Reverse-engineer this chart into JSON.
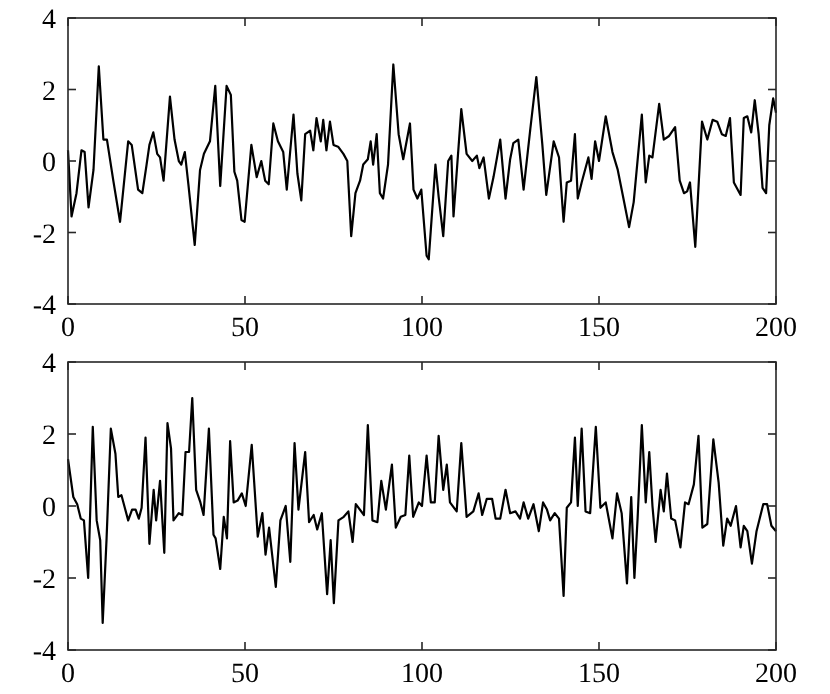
{
  "chart_data": [
    {
      "type": "line",
      "xlim": [
        0,
        200
      ],
      "xticks": [
        0,
        50,
        100,
        150,
        200
      ],
      "ylim": [
        -4,
        4
      ],
      "yticks": [
        -4,
        -2,
        0,
        2,
        4
      ],
      "grid": false,
      "series": [
        {
          "color": "#000000",
          "x": [
            0,
            1,
            2.4,
            3.8,
            4.7,
            5.8,
            7.2,
            8.7,
            10,
            11,
            12.8,
            14.7,
            17,
            18,
            19.8,
            21,
            22.2,
            23,
            24.1,
            25.2,
            26,
            27,
            28.8,
            30.1,
            31.3,
            32,
            33,
            34,
            35.8,
            37.3,
            38.4,
            40.1,
            41.6,
            43,
            44.8,
            46,
            47,
            47.8,
            49,
            49.9,
            51.8,
            53.3,
            54.6,
            55.7,
            56.7,
            58,
            59.3,
            60.8,
            61.8,
            63.7,
            64.8,
            65.9,
            67,
            68.4,
            69.3,
            70.2,
            71.4,
            72.1,
            73,
            74,
            75,
            76.3,
            77.8,
            78.9,
            80,
            81.2,
            82.5,
            83.4,
            84.7,
            85.5,
            86.2,
            87.2,
            88.1,
            89,
            90.4,
            91.9,
            93.4,
            94.7,
            96.6,
            97.6,
            98.7,
            99.8,
            101.3,
            101.9,
            103.8,
            104.7,
            106,
            107.4,
            108.3,
            108.9,
            111.1,
            112.6,
            114.2,
            115.5,
            116.2,
            117.4,
            118.9,
            120.2,
            122.1,
            123.6,
            124.9,
            125.8,
            127.2,
            128.7,
            130.6,
            132.3,
            134,
            135.1,
            137.2,
            138.7,
            140,
            140.9,
            142.1,
            143.2,
            144,
            145.1,
            147,
            147.9,
            148.9,
            150,
            151.9,
            153.8,
            155.3,
            157,
            158.5,
            159.8,
            162.1,
            163.2,
            164.2,
            165.1,
            167,
            168.3,
            169.8,
            171.5,
            172.8,
            174,
            174.9,
            175.7,
            177.2,
            179.1,
            180.6,
            182.1,
            183.4,
            184.7,
            185.8,
            187,
            188.1,
            190,
            190.9,
            191.9,
            193,
            194,
            195.1,
            196.2,
            197.2,
            198.1,
            199.2,
            200
          ],
          "values": [
            0.3,
            -1.55,
            -0.9,
            0.3,
            0.25,
            -1.3,
            -0.25,
            2.65,
            0.6,
            0.6,
            -0.55,
            -1.7,
            0.55,
            0.45,
            -0.8,
            -0.9,
            -0.1,
            0.45,
            0.8,
            0.2,
            0.1,
            -0.55,
            1.8,
            0.6,
            0.0,
            -0.1,
            0.25,
            -0.65,
            -2.35,
            -0.25,
            0.2,
            0.55,
            2.1,
            -0.7,
            2.1,
            1.85,
            -0.3,
            -0.55,
            -1.65,
            -1.7,
            0.45,
            -0.45,
            0.0,
            -0.55,
            -0.65,
            1.05,
            0.55,
            0.25,
            -0.8,
            1.3,
            -0.35,
            -1.1,
            0.75,
            0.85,
            0.3,
            1.2,
            0.55,
            1.15,
            0.3,
            1.1,
            0.45,
            0.4,
            0.2,
            0.0,
            -2.1,
            -0.9,
            -0.55,
            -0.1,
            0.05,
            0.55,
            -0.1,
            0.75,
            -0.9,
            -1.05,
            -0.1,
            2.7,
            0.75,
            0.05,
            1.05,
            -0.8,
            -1.05,
            -0.8,
            -2.65,
            -2.75,
            -0.1,
            -1.0,
            -2.1,
            0.0,
            0.15,
            -1.55,
            1.45,
            0.2,
            0.0,
            0.15,
            -0.2,
            0.1,
            -1.05,
            -0.45,
            0.6,
            -1.05,
            0.05,
            0.5,
            0.6,
            -0.8,
            0.9,
            2.35,
            0.45,
            -0.95,
            0.55,
            0.1,
            -1.7,
            -0.6,
            -0.55,
            0.75,
            -1.05,
            -0.6,
            0.1,
            -0.5,
            0.55,
            0.0,
            1.25,
            0.25,
            -0.25,
            -1.1,
            -1.85,
            -1.15,
            1.3,
            -0.6,
            0.15,
            0.1,
            1.6,
            0.6,
            0.7,
            0.95,
            -0.55,
            -0.9,
            -0.85,
            -0.6,
            -2.4,
            1.1,
            0.6,
            1.15,
            1.1,
            0.75,
            0.7,
            1.2,
            -0.6,
            -0.95,
            1.2,
            1.25,
            0.8,
            1.7,
            0.75,
            -0.75,
            -0.9,
            1.0,
            1.75,
            1.35
          ]
        }
      ]
    },
    {
      "type": "line",
      "xlim": [
        0,
        200
      ],
      "xticks": [
        0,
        50,
        100,
        150,
        200
      ],
      "ylim": [
        -4,
        4
      ],
      "yticks": [
        -4,
        -2,
        0,
        2,
        4
      ],
      "grid": false,
      "series": [
        {
          "color": "#000000",
          "x": [
            0,
            1.5,
            2.6,
            3.6,
            4.5,
            5.7,
            7,
            8.1,
            9.1,
            9.8,
            10.9,
            12.1,
            13.4,
            14.2,
            15.1,
            17,
            18.1,
            19.1,
            20,
            20.8,
            21.9,
            23,
            24.2,
            24.9,
            26,
            27.2,
            28.1,
            29.1,
            29.8,
            31.3,
            32.3,
            33.2,
            34.2,
            35.1,
            36.2,
            37.4,
            38.3,
            39.8,
            41.1,
            41.7,
            43,
            44,
            44.9,
            45.8,
            46.8,
            47.9,
            49.1,
            50.2,
            51.9,
            53.6,
            54.9,
            55.8,
            56.8,
            58.7,
            60,
            61.5,
            62.8,
            64,
            65.1,
            67,
            68.1,
            69.4,
            70.4,
            71.7,
            73.2,
            74.2,
            75.1,
            76.4,
            77.9,
            79.2,
            80.4,
            81.3,
            83.6,
            84.7,
            86,
            87.4,
            88.5,
            89.8,
            91.5,
            92.6,
            94,
            95.3,
            96.4,
            97.5,
            99.1,
            100,
            101.3,
            102.5,
            103.6,
            104.7,
            106,
            107,
            107.9,
            109.8,
            111.1,
            112.6,
            114.5,
            116,
            117,
            118.3,
            119.8,
            120.8,
            122.1,
            123.6,
            124.9,
            126.4,
            127.7,
            128.7,
            130,
            131.5,
            133,
            134.2,
            135.3,
            136.2,
            137.5,
            138.7,
            140,
            140.9,
            142.1,
            143.2,
            144,
            145.1,
            146.2,
            147.5,
            149.1,
            150.4,
            151.9,
            153.8,
            155.1,
            156.4,
            157.9,
            159.1,
            160,
            160.9,
            162.1,
            163.2,
            164.2,
            165.1,
            166,
            167.4,
            168.3,
            169.2,
            170.4,
            171.5,
            173,
            174.3,
            175.3,
            176.8,
            178.1,
            179.2,
            180.6,
            182.3,
            183.8,
            185.1,
            186.2,
            187.2,
            188.7,
            190,
            190.9,
            191.9,
            193.2,
            194.5,
            196.4,
            197.5,
            198.7,
            200
          ],
          "values": [
            1.3,
            0.25,
            0.05,
            -0.35,
            -0.4,
            -2.0,
            2.2,
            -0.4,
            -0.95,
            -3.25,
            -0.9,
            2.15,
            1.45,
            0.25,
            0.3,
            -0.4,
            -0.1,
            -0.1,
            -0.35,
            -0.05,
            1.9,
            -1.05,
            0.45,
            -0.4,
            0.7,
            -1.3,
            2.3,
            1.6,
            -0.4,
            -0.2,
            -0.25,
            1.5,
            1.5,
            3.0,
            0.45,
            0.1,
            -0.25,
            2.15,
            -0.8,
            -0.9,
            -1.75,
            -0.3,
            -0.9,
            1.8,
            0.1,
            0.15,
            0.35,
            0.0,
            1.7,
            -0.85,
            -0.2,
            -1.35,
            -0.6,
            -2.25,
            -0.4,
            0.0,
            -1.55,
            1.75,
            -0.1,
            1.5,
            -0.45,
            -0.25,
            -0.65,
            -0.2,
            -2.45,
            -0.95,
            -2.7,
            -0.4,
            -0.3,
            -0.15,
            -1.0,
            0.05,
            -0.25,
            2.25,
            -0.4,
            -0.45,
            0.7,
            -0.1,
            1.15,
            -0.6,
            -0.3,
            -0.25,
            1.4,
            -0.3,
            0.1,
            0.0,
            1.4,
            0.1,
            0.1,
            1.95,
            0.45,
            1.15,
            0.1,
            -0.15,
            1.75,
            -0.3,
            -0.15,
            0.35,
            -0.25,
            0.2,
            0.2,
            -0.35,
            -0.35,
            0.45,
            -0.2,
            -0.15,
            -0.35,
            0.1,
            -0.35,
            0.05,
            -0.7,
            0.1,
            -0.1,
            -0.4,
            -0.2,
            -0.35,
            -2.5,
            -0.05,
            0.1,
            1.9,
            0.0,
            2.15,
            -0.15,
            -0.2,
            2.2,
            -0.05,
            0.1,
            -0.9,
            0.35,
            -0.2,
            -2.15,
            0.25,
            -2.0,
            -0.35,
            2.25,
            0.1,
            1.5,
            0.0,
            -1.0,
            0.45,
            -0.15,
            0.9,
            -0.35,
            -0.4,
            -1.15,
            0.1,
            0.05,
            0.6,
            1.95,
            -0.6,
            -0.5,
            1.85,
            0.65,
            -1.1,
            -0.35,
            -0.55,
            0.0,
            -1.15,
            -0.55,
            -0.7,
            -1.6,
            -0.7,
            0.05,
            0.05,
            -0.55,
            -0.7
          ]
        }
      ]
    }
  ]
}
